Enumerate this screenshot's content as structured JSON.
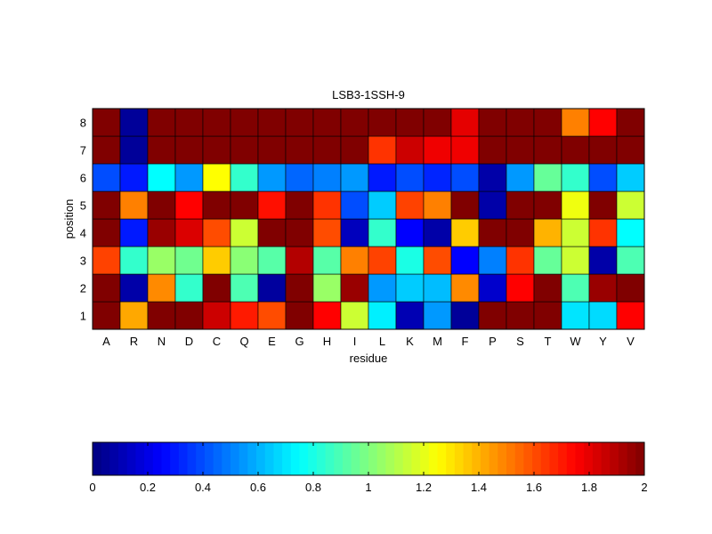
{
  "chart_data": {
    "type": "heatmap",
    "title": "LSB3-1SSH-9",
    "xlabel": "residue",
    "ylabel": "position",
    "x_categories": [
      "A",
      "R",
      "N",
      "D",
      "C",
      "Q",
      "E",
      "G",
      "H",
      "I",
      "L",
      "K",
      "M",
      "F",
      "P",
      "S",
      "T",
      "W",
      "Y",
      "V"
    ],
    "y_categories": [
      "1",
      "2",
      "3",
      "4",
      "5",
      "6",
      "7",
      "8"
    ],
    "colormap": "jet",
    "clim": [
      0,
      2
    ],
    "colorbar": {
      "orientation": "horizontal",
      "location": "bottom",
      "ticks": [
        "0",
        "0.2",
        "0.4",
        "0.6",
        "0.8",
        "1",
        "1.2",
        "1.4",
        "1.6",
        "1.8",
        "2"
      ]
    },
    "values": [
      [
        2,
        1.42,
        2,
        2,
        1.85,
        1.7,
        1.6,
        2,
        1.75,
        1.15,
        0.72,
        0.1,
        0.55,
        0.05,
        2,
        2,
        2,
        0.7,
        0.68,
        1.75
      ],
      [
        2,
        0.08,
        1.48,
        0.85,
        2,
        0.9,
        0.06,
        2,
        1.05,
        1.95,
        0.55,
        0.65,
        0.62,
        1.48,
        0.15,
        1.75,
        2,
        0.9,
        1.95,
        2
      ],
      [
        1.62,
        0.85,
        1.05,
        0.97,
        1.35,
        1.02,
        0.92,
        1.9,
        0.92,
        1.5,
        1.62,
        0.8,
        1.6,
        0.25,
        0.5,
        1.65,
        0.95,
        1.15,
        0.08,
        0.9
      ],
      [
        2,
        0.3,
        1.95,
        1.82,
        1.6,
        1.15,
        2,
        2,
        1.6,
        0.12,
        0.85,
        0.25,
        0.08,
        1.35,
        2,
        2,
        1.4,
        1.15,
        1.65,
        0.75
      ],
      [
        2,
        1.5,
        2,
        1.75,
        2,
        2,
        1.72,
        2,
        1.65,
        0.4,
        0.65,
        1.62,
        1.5,
        2,
        0.08,
        2,
        2,
        1.22,
        2,
        1.15
      ],
      [
        0.4,
        0.3,
        0.75,
        0.55,
        1.25,
        0.85,
        0.55,
        0.45,
        0.5,
        0.55,
        0.3,
        0.4,
        0.32,
        0.4,
        0.08,
        0.55,
        0.95,
        0.85,
        0.4,
        0.65
      ],
      [
        2,
        0.05,
        2,
        2,
        2,
        2,
        2,
        2,
        2,
        2,
        1.65,
        1.85,
        1.78,
        1.78,
        2,
        2,
        2,
        2,
        2,
        2
      ],
      [
        2,
        0.05,
        2,
        2,
        2,
        2,
        2,
        2,
        2,
        2,
        2,
        2,
        2,
        1.8,
        2,
        2,
        2,
        1.5,
        1.75,
        2
      ]
    ]
  }
}
